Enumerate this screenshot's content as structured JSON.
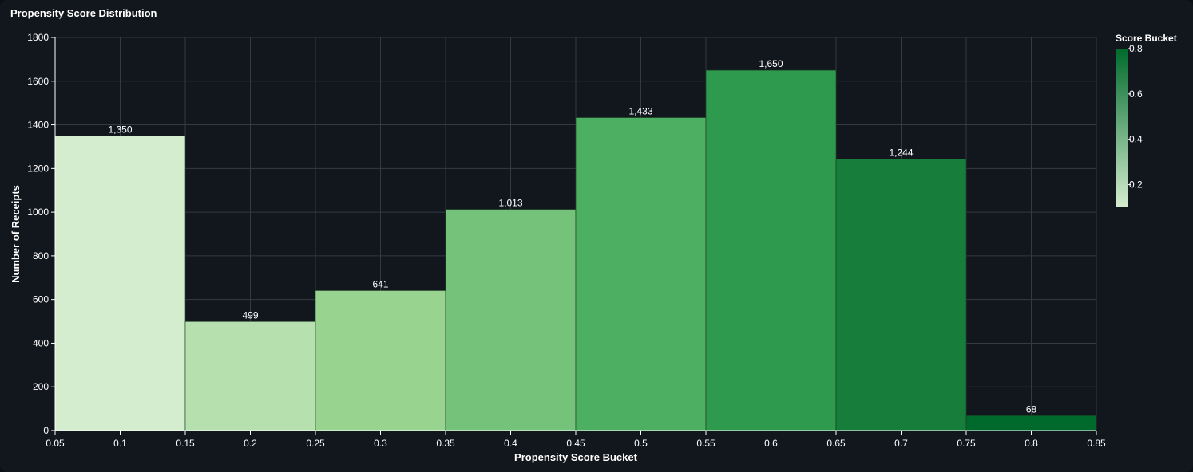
{
  "panel": {
    "title": "Propensity Score Distribution"
  },
  "chart_data": {
    "type": "bar",
    "title": "Propensity Score Distribution",
    "xlabel": "Propensity Score Bucket",
    "ylabel": "Number of Receipts",
    "xlim": [
      0.05,
      0.85
    ],
    "ylim": [
      0,
      1800
    ],
    "x_ticks": [
      0.05,
      0.1,
      0.15,
      0.2,
      0.25,
      0.3,
      0.35,
      0.4,
      0.45,
      0.5,
      0.55,
      0.6,
      0.65,
      0.7,
      0.75,
      0.8,
      0.85
    ],
    "x_tick_labels": [
      "0.05",
      "0.1",
      "0.15",
      "0.2",
      "0.25",
      "0.3",
      "0.35",
      "0.4",
      "0.45",
      "0.5",
      "0.55",
      "0.6",
      "0.65",
      "0.7",
      "0.75",
      "0.8",
      "0.85"
    ],
    "y_ticks": [
      0,
      200,
      400,
      600,
      800,
      1000,
      1200,
      1400,
      1600,
      1800
    ],
    "y_tick_labels": [
      "0",
      "200",
      "400",
      "600",
      "800",
      "1000",
      "1200",
      "1400",
      "1600",
      "1800"
    ],
    "grid": true,
    "bins": [
      {
        "x0": 0.05,
        "x1": 0.15,
        "value": 1350,
        "label": "1,350",
        "score": 0.1,
        "color": "#d5edcf"
      },
      {
        "x0": 0.15,
        "x1": 0.25,
        "value": 499,
        "label": "499",
        "score": 0.2,
        "color": "#b6e0ae"
      },
      {
        "x0": 0.25,
        "x1": 0.35,
        "value": 641,
        "label": "641",
        "score": 0.3,
        "color": "#98d390"
      },
      {
        "x0": 0.35,
        "x1": 0.45,
        "value": 1013,
        "label": "1,013",
        "score": 0.4,
        "color": "#75c37b"
      },
      {
        "x0": 0.45,
        "x1": 0.55,
        "value": 1433,
        "label": "1,433",
        "score": 0.5,
        "color": "#4caf61"
      },
      {
        "x0": 0.55,
        "x1": 0.65,
        "value": 1650,
        "label": "1,650",
        "score": 0.6,
        "color": "#2e9a4d"
      },
      {
        "x0": 0.65,
        "x1": 0.75,
        "value": 1244,
        "label": "1,244",
        "score": 0.7,
        "color": "#167e3a"
      },
      {
        "x0": 0.75,
        "x1": 0.85,
        "value": 68,
        "label": "68",
        "score": 0.8,
        "color": "#006a2c"
      }
    ],
    "legend": {
      "title": "Score Bucket",
      "position": "top-right",
      "type": "color-gradient",
      "range": [
        0.1,
        0.8
      ],
      "ticks": [
        0.2,
        0.4,
        0.6,
        0.8
      ],
      "tick_labels": [
        "0.2",
        "0.4",
        "0.6",
        "0.8"
      ],
      "color_low": "#d5edcf",
      "color_high": "#006a2c"
    },
    "colors": {
      "background": "#12161d",
      "grid": "#343a43",
      "axis": "#ffffff",
      "text": "#ffffff"
    }
  }
}
